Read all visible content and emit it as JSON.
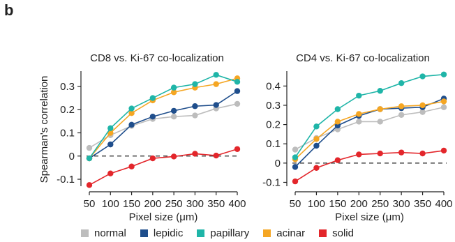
{
  "panel_label": "b",
  "colors": {
    "normal": "#bdbdbd",
    "lepidic": "#1f4e8c",
    "papillary": "#1fb5a8",
    "acinar": "#f5a623",
    "solid": "#e3262b"
  },
  "legend": [
    {
      "key": "normal",
      "label": "normal"
    },
    {
      "key": "lepidic",
      "label": "lepidic"
    },
    {
      "key": "papillary",
      "label": "papillary"
    },
    {
      "key": "acinar",
      "label": "acinar"
    },
    {
      "key": "solid",
      "label": "solid"
    }
  ],
  "chart_data": [
    {
      "type": "line",
      "title": "CD8 vs. Ki-67 co-localization",
      "xlabel": "Pixel size (μm)",
      "ylabel": "Spearman's correlation",
      "x": [
        50,
        100,
        150,
        200,
        250,
        300,
        350,
        400
      ],
      "ylim": [
        -0.13,
        0.36
      ],
      "yticks": [
        -0.1,
        0,
        0.1,
        0.2,
        0.3
      ],
      "ytick_labels": [
        "-0.1",
        "0",
        "0.1",
        "0.2",
        "0.3"
      ],
      "reference_line": 0,
      "series": [
        {
          "name": "normal",
          "values": [
            0.035,
            0.09,
            0.13,
            0.16,
            0.17,
            0.175,
            0.205,
            0.225
          ]
        },
        {
          "name": "lepidic",
          "values": [
            -0.01,
            0.05,
            0.135,
            0.17,
            0.195,
            0.215,
            0.22,
            0.28
          ]
        },
        {
          "name": "papillary",
          "values": [
            -0.01,
            0.12,
            0.205,
            0.25,
            0.295,
            0.31,
            0.35,
            0.32
          ]
        },
        {
          "name": "acinar",
          "values": [
            -0.01,
            0.1,
            0.185,
            0.24,
            0.275,
            0.295,
            0.31,
            0.335
          ]
        },
        {
          "name": "solid",
          "values": [
            -0.125,
            -0.075,
            -0.045,
            -0.01,
            -0.002,
            0.01,
            0.002,
            0.03
          ]
        }
      ]
    },
    {
      "type": "line",
      "title": "CD4 vs. Ki-67 co-localization",
      "xlabel": "Pixel size (μm)",
      "ylabel": "",
      "x": [
        50,
        100,
        150,
        200,
        250,
        300,
        350,
        400
      ],
      "ylim": [
        -0.12,
        0.47
      ],
      "yticks": [
        -0.1,
        0,
        0.1,
        0.2,
        0.3,
        0.4
      ],
      "ytick_labels": [
        "-0.1",
        "0",
        "0.1",
        "0.2",
        "0.3",
        "0.4"
      ],
      "reference_line": 0,
      "series": [
        {
          "name": "normal",
          "values": [
            0.07,
            0.13,
            0.175,
            0.215,
            0.215,
            0.25,
            0.265,
            0.29
          ]
        },
        {
          "name": "lepidic",
          "values": [
            -0.02,
            0.09,
            0.195,
            0.245,
            0.28,
            0.285,
            0.29,
            0.335
          ]
        },
        {
          "name": "papillary",
          "values": [
            0.03,
            0.19,
            0.28,
            0.35,
            0.375,
            0.415,
            0.45,
            0.46
          ]
        },
        {
          "name": "acinar",
          "values": [
            0.02,
            0.125,
            0.215,
            0.255,
            0.28,
            0.295,
            0.3,
            0.32
          ]
        },
        {
          "name": "solid",
          "values": [
            -0.095,
            -0.025,
            0.015,
            0.045,
            0.05,
            0.055,
            0.05,
            0.065
          ]
        }
      ]
    }
  ]
}
